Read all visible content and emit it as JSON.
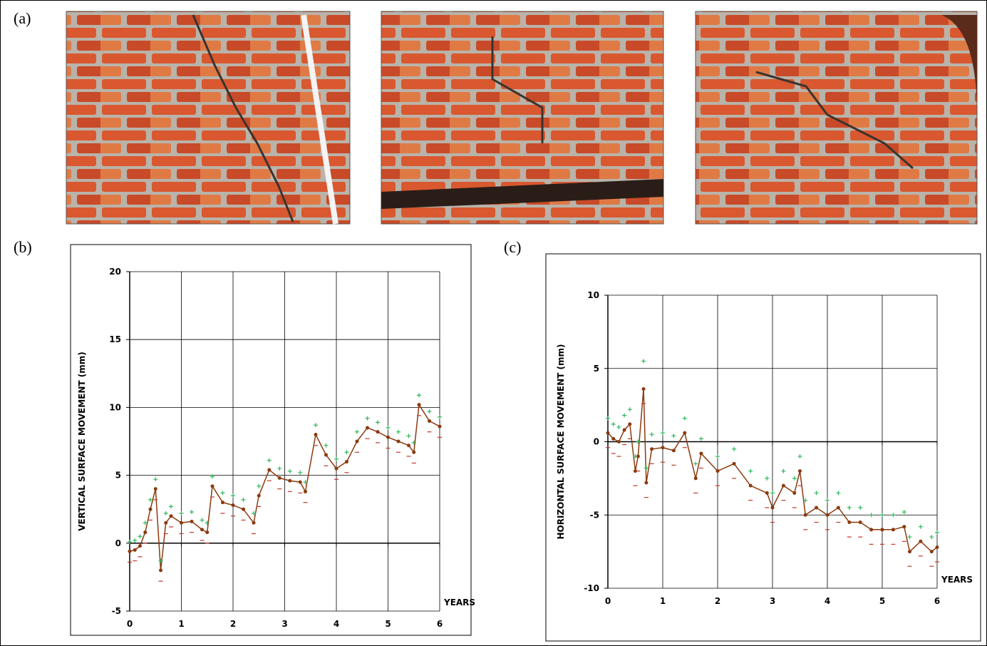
{
  "panels": [
    "(a)",
    "(b)",
    "(c)"
  ],
  "chart_data": [
    {
      "type": "line",
      "ylabel": "VERTICAL  SURFACE  MOVEMENT  (mm)",
      "xlabel": "YEARS",
      "x": [
        0,
        0.1,
        0.2,
        0.3,
        0.4,
        0.5,
        0.6,
        0.7,
        0.8,
        1.0,
        1.2,
        1.4,
        1.5,
        1.6,
        1.8,
        2.0,
        2.2,
        2.4,
        2.5,
        2.7,
        2.9,
        3.1,
        3.3,
        3.4,
        3.6,
        3.8,
        4.0,
        4.2,
        4.4,
        4.6,
        4.8,
        5.0,
        5.2,
        5.4,
        5.5,
        5.6,
        5.8,
        6.0
      ],
      "series": [
        {
          "color": "#8b3a0f",
          "marker": "dot",
          "values": [
            -0.6,
            -0.5,
            -0.2,
            0.8,
            2.5,
            4.0,
            -2.0,
            1.5,
            2.0,
            1.5,
            1.6,
            1.0,
            0.8,
            4.2,
            3.0,
            2.8,
            2.5,
            1.5,
            3.5,
            5.4,
            4.8,
            4.6,
            4.5,
            3.8,
            8.0,
            6.5,
            5.5,
            6.0,
            7.5,
            8.5,
            8.2,
            7.8,
            7.5,
            7.2,
            6.7,
            10.2,
            9.0,
            8.6
          ]
        },
        {
          "color": "#2eb85c",
          "marker": "plus",
          "values": [
            0.1,
            0.2,
            0.5,
            1.5,
            3.2,
            4.7,
            -1.3,
            2.2,
            2.7,
            2.2,
            2.3,
            1.7,
            1.5,
            4.9,
            3.7,
            3.5,
            3.2,
            2.2,
            4.2,
            6.1,
            5.5,
            5.3,
            5.2,
            4.5,
            8.7,
            7.2,
            6.2,
            6.7,
            8.2,
            9.2,
            8.9,
            8.5,
            8.2,
            7.9,
            7.4,
            10.9,
            9.7,
            9.3
          ]
        },
        {
          "color": "#c0392b",
          "marker": "dash",
          "values": [
            -1.4,
            -1.3,
            -1.0,
            0.0,
            1.7,
            3.2,
            -2.8,
            0.7,
            1.2,
            0.7,
            0.8,
            0.2,
            0.0,
            3.4,
            2.2,
            2.0,
            1.7,
            0.7,
            2.7,
            4.6,
            4.0,
            3.8,
            3.7,
            3.0,
            7.2,
            5.7,
            4.7,
            5.2,
            6.7,
            7.7,
            7.4,
            7.0,
            6.7,
            6.4,
            5.9,
            9.4,
            8.2,
            7.8
          ]
        }
      ],
      "xlim": [
        0,
        6
      ],
      "ylim": [
        -5,
        20
      ],
      "xticks": [
        0,
        1,
        2,
        3,
        4,
        5,
        6
      ],
      "yticks": [
        -5,
        0,
        5,
        10,
        15,
        20
      ],
      "grid": true
    },
    {
      "type": "line",
      "ylabel": "HORIZONTAL  SURFACE  MOVEMENT  (mm)",
      "xlabel": "YEARS",
      "x": [
        0,
        0.1,
        0.2,
        0.3,
        0.4,
        0.5,
        0.55,
        0.65,
        0.7,
        0.8,
        1.0,
        1.2,
        1.4,
        1.6,
        1.7,
        2.0,
        2.3,
        2.6,
        2.9,
        3.0,
        3.2,
        3.4,
        3.5,
        3.6,
        3.8,
        4.0,
        4.2,
        4.4,
        4.6,
        4.8,
        5.0,
        5.2,
        5.4,
        5.5,
        5.7,
        5.9,
        6.0
      ],
      "series": [
        {
          "color": "#8b3a0f",
          "marker": "dot",
          "values": [
            0.6,
            0.2,
            0.0,
            0.8,
            1.2,
            -2.0,
            -1.0,
            3.6,
            -2.8,
            -0.5,
            -0.4,
            -0.6,
            0.6,
            -2.5,
            -0.8,
            -2.0,
            -1.5,
            -3.0,
            -3.5,
            -4.5,
            -3.0,
            -3.5,
            -2.0,
            -5.0,
            -4.5,
            -5.0,
            -4.5,
            -5.5,
            -5.5,
            -6.0,
            -6.0,
            -6.0,
            -5.8,
            -7.5,
            -6.8,
            -7.5,
            -7.2
          ]
        },
        {
          "color": "#2eb85c",
          "marker": "plus",
          "values": [
            1.6,
            1.2,
            1.0,
            1.8,
            2.2,
            -1.0,
            0.0,
            5.5,
            -1.8,
            0.5,
            0.6,
            0.4,
            1.6,
            -1.5,
            0.2,
            -1.0,
            -0.5,
            -2.0,
            -2.5,
            -3.5,
            -2.0,
            -2.5,
            -1.0,
            -4.0,
            -3.5,
            -4.0,
            -3.5,
            -4.5,
            -4.5,
            -5.0,
            -5.0,
            -5.0,
            -4.8,
            -6.5,
            -5.8,
            -6.5,
            -6.2
          ]
        },
        {
          "color": "#c0392b",
          "marker": "dash",
          "values": [
            -0.4,
            -0.8,
            -1.0,
            -0.2,
            0.2,
            -3.0,
            -2.0,
            2.6,
            -3.8,
            -1.5,
            -1.4,
            -1.6,
            -0.4,
            -3.5,
            -1.8,
            -3.0,
            -2.5,
            -4.0,
            -4.5,
            -5.5,
            -4.0,
            -4.5,
            -3.0,
            -6.0,
            -5.5,
            -6.0,
            -5.5,
            -6.5,
            -6.5,
            -7.0,
            -7.0,
            -7.0,
            -6.8,
            -8.5,
            -7.8,
            -8.5,
            -8.2
          ]
        }
      ],
      "xlim": [
        0,
        6
      ],
      "ylim": [
        -10,
        10
      ],
      "xticks": [
        0,
        1,
        2,
        3,
        4,
        5,
        6
      ],
      "yticks": [
        -10,
        -5,
        0,
        5,
        10
      ],
      "grid": true
    }
  ]
}
